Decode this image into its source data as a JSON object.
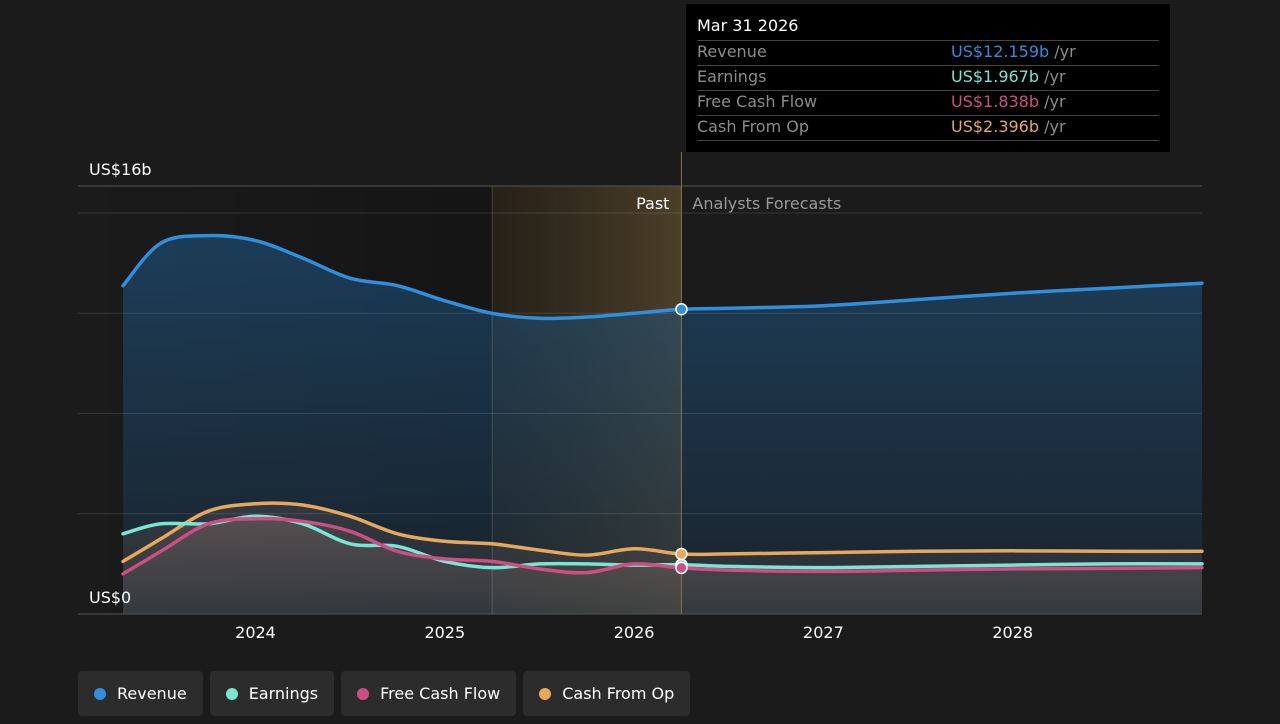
{
  "chart_data": {
    "type": "area",
    "y_axis": {
      "min": 0,
      "max": 16,
      "unit": "US$ billions",
      "top_label": "US$16b",
      "bottom_label": "US$0"
    },
    "x_axis": {
      "tick_labels": [
        "2024",
        "2025",
        "2026",
        "2027",
        "2028"
      ],
      "ticks": [
        2024,
        2025,
        2026,
        2027,
        2028
      ],
      "range": [
        2023.3,
        2029.0
      ]
    },
    "past_label": "Past",
    "forecast_label": "Analysts Forecasts",
    "past_end": 2026.25,
    "highlight_start": 2025.25,
    "series": [
      {
        "name": "Revenue",
        "color": "#2f8fdd",
        "points": [
          [
            2023.3,
            13.1
          ],
          [
            2023.5,
            14.8
          ],
          [
            2023.75,
            15.1
          ],
          [
            2024.0,
            14.9
          ],
          [
            2024.25,
            14.2
          ],
          [
            2024.5,
            13.4
          ],
          [
            2024.75,
            13.1
          ],
          [
            2025.0,
            12.5
          ],
          [
            2025.25,
            12.0
          ],
          [
            2025.5,
            11.8
          ],
          [
            2025.75,
            11.85
          ],
          [
            2026.0,
            12.0
          ],
          [
            2026.25,
            12.159
          ],
          [
            2026.5,
            12.2
          ],
          [
            2027.0,
            12.3
          ],
          [
            2027.5,
            12.55
          ],
          [
            2028.0,
            12.8
          ],
          [
            2028.5,
            13.0
          ],
          [
            2029.0,
            13.2
          ]
        ]
      },
      {
        "name": "Earnings",
        "color": "#79e6d3",
        "points": [
          [
            2023.3,
            3.2
          ],
          [
            2023.5,
            3.6
          ],
          [
            2023.75,
            3.6
          ],
          [
            2024.0,
            3.9
          ],
          [
            2024.25,
            3.6
          ],
          [
            2024.5,
            2.8
          ],
          [
            2024.75,
            2.7
          ],
          [
            2025.0,
            2.1
          ],
          [
            2025.25,
            1.85
          ],
          [
            2025.5,
            2.0
          ],
          [
            2025.75,
            2.0
          ],
          [
            2026.0,
            1.95
          ],
          [
            2026.25,
            1.967
          ],
          [
            2026.5,
            1.9
          ],
          [
            2027.0,
            1.85
          ],
          [
            2027.5,
            1.9
          ],
          [
            2028.0,
            1.95
          ],
          [
            2028.5,
            2.0
          ],
          [
            2029.0,
            2.0
          ]
        ]
      },
      {
        "name": "Free Cash Flow",
        "color": "#cc4e82",
        "points": [
          [
            2023.3,
            1.6
          ],
          [
            2023.5,
            2.5
          ],
          [
            2023.75,
            3.6
          ],
          [
            2024.0,
            3.8
          ],
          [
            2024.25,
            3.7
          ],
          [
            2024.5,
            3.3
          ],
          [
            2024.75,
            2.5
          ],
          [
            2025.0,
            2.2
          ],
          [
            2025.25,
            2.1
          ],
          [
            2025.5,
            1.8
          ],
          [
            2025.75,
            1.65
          ],
          [
            2026.0,
            2.0
          ],
          [
            2026.25,
            1.838
          ],
          [
            2026.5,
            1.75
          ],
          [
            2027.0,
            1.7
          ],
          [
            2027.5,
            1.75
          ],
          [
            2028.0,
            1.8
          ],
          [
            2028.5,
            1.82
          ],
          [
            2029.0,
            1.85
          ]
        ]
      },
      {
        "name": "Cash From Op",
        "color": "#e6a95c",
        "points": [
          [
            2023.3,
            2.1
          ],
          [
            2023.5,
            3.0
          ],
          [
            2023.75,
            4.1
          ],
          [
            2024.0,
            4.4
          ],
          [
            2024.25,
            4.35
          ],
          [
            2024.5,
            3.9
          ],
          [
            2024.75,
            3.2
          ],
          [
            2025.0,
            2.9
          ],
          [
            2025.25,
            2.8
          ],
          [
            2025.5,
            2.55
          ],
          [
            2025.75,
            2.35
          ],
          [
            2026.0,
            2.6
          ],
          [
            2026.25,
            2.396
          ],
          [
            2026.5,
            2.4
          ],
          [
            2027.0,
            2.45
          ],
          [
            2027.5,
            2.5
          ],
          [
            2028.0,
            2.52
          ],
          [
            2028.5,
            2.5
          ],
          [
            2029.0,
            2.5
          ]
        ]
      }
    ]
  },
  "tooltip": {
    "date": "Mar 31 2026",
    "unit": "/yr",
    "rows": [
      {
        "label": "Revenue",
        "value": "US$12.159b",
        "color": "#2f8fdd"
      },
      {
        "label": "Earnings",
        "value": "US$1.967b",
        "color": "#79e6d3"
      },
      {
        "label": "Free Cash Flow",
        "value": "US$1.838b",
        "color": "#cc4e82"
      },
      {
        "label": "Cash From Op",
        "value": "US$2.396b",
        "color": "#e6a95c"
      }
    ]
  },
  "legend": [
    {
      "label": "Revenue",
      "color": "#2f8fdd"
    },
    {
      "label": "Earnings",
      "color": "#79e6d3"
    },
    {
      "label": "Free Cash Flow",
      "color": "#cc4e82"
    },
    {
      "label": "Cash From Op",
      "color": "#e6a95c"
    }
  ]
}
